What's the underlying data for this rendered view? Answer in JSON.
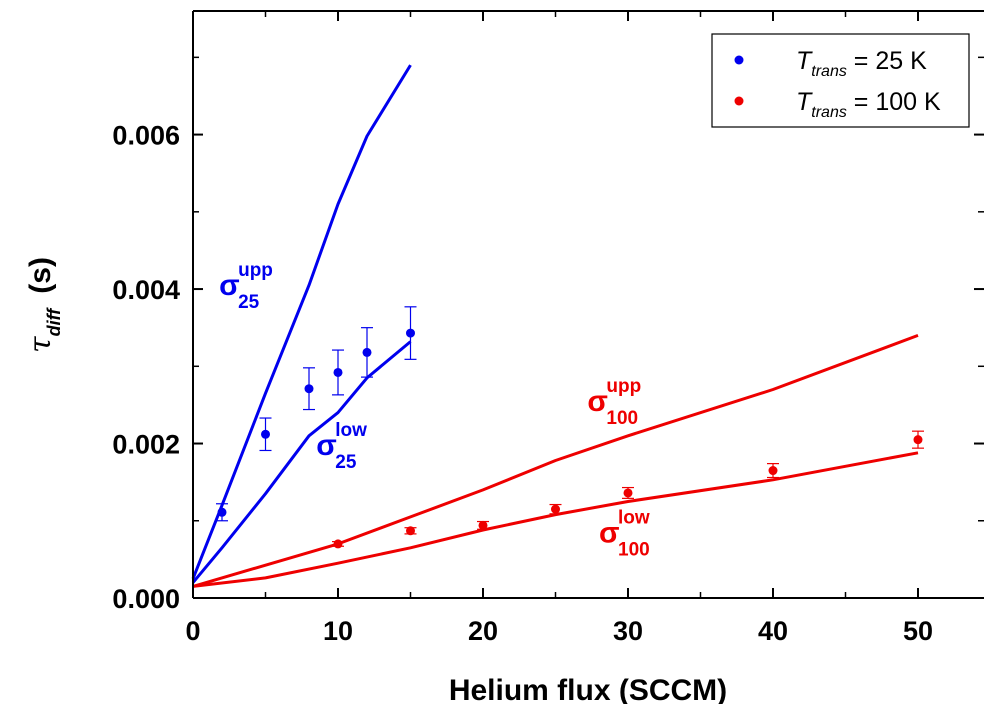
{
  "chart_data": {
    "type": "scatter",
    "xlabel": "Helium flux (SCCM)",
    "ylabel": {
      "symbol": "τ",
      "sub": "diff",
      "unit": "(s)"
    },
    "xlim": [
      0,
      55
    ],
    "ylim": [
      0,
      0.0076
    ],
    "x_ticks": [
      0,
      10,
      20,
      30,
      40,
      50
    ],
    "x_tick_labels": [
      "0",
      "10",
      "20",
      "30",
      "40",
      "50"
    ],
    "y_ticks": [
      0.0,
      0.002,
      0.004,
      0.006
    ],
    "y_tick_labels": [
      "0.000",
      "0.002",
      "0.004",
      "0.006"
    ],
    "grid": false,
    "legend": {
      "position": "top-right",
      "entries": [
        {
          "symbol": "T",
          "sub": "trans",
          "text": " = 25 K",
          "color": "#0000ee"
        },
        {
          "symbol": "T",
          "sub": "trans",
          "text": " = 100 K",
          "color": "#ee0000"
        }
      ]
    },
    "series": [
      {
        "color": "#0000ee",
        "kind": "points",
        "x": [
          2,
          5,
          8,
          10,
          12,
          15
        ],
        "y": [
          0.00111,
          0.00212,
          0.00271,
          0.00292,
          0.00318,
          0.00343
        ],
        "err": [
          0.00011,
          0.00021,
          0.00027,
          0.00029,
          0.00032,
          0.00034
        ]
      },
      {
        "color": "#ee0000",
        "kind": "points",
        "x": [
          10,
          15,
          20,
          25,
          30,
          40,
          50
        ],
        "y": [
          0.0007,
          0.00087,
          0.00094,
          0.00115,
          0.00136,
          0.00165,
          0.00205
        ],
        "err": [
          3e-05,
          4e-05,
          5e-05,
          6e-05,
          7e-05,
          9e-05,
          0.00011
        ]
      },
      {
        "color": "#0000ee",
        "kind": "line",
        "x": [
          0,
          2,
          5,
          8,
          10,
          12,
          15
        ],
        "y": [
          0.00025,
          0.0012,
          0.00265,
          0.00405,
          0.0051,
          0.00598,
          0.0069
        ]
      },
      {
        "color": "#0000ee",
        "kind": "line",
        "x": [
          0,
          2,
          5,
          8,
          10,
          12,
          15
        ],
        "y": [
          0.0002,
          0.00065,
          0.00135,
          0.0021,
          0.0024,
          0.00285,
          0.00332
        ]
      },
      {
        "color": "#ee0000",
        "kind": "line",
        "x": [
          0,
          10,
          15,
          20,
          25,
          30,
          40,
          50
        ],
        "y": [
          0.00015,
          0.0007,
          0.00105,
          0.0014,
          0.00178,
          0.0021,
          0.0027,
          0.0034
        ]
      },
      {
        "color": "#ee0000",
        "kind": "line",
        "x": [
          0,
          5,
          10,
          15,
          20,
          25,
          30,
          40,
          50
        ],
        "y": [
          0.00015,
          0.00026,
          0.00045,
          0.00065,
          0.00088,
          0.00108,
          0.00125,
          0.00153,
          0.00188
        ]
      }
    ],
    "annotations": [
      {
        "symbol": "σ",
        "sup": "upp",
        "sub": "25",
        "color": "#0000ee",
        "x": 1.8,
        "y": 0.00392
      },
      {
        "symbol": "σ",
        "sup": "low",
        "sub": "25",
        "color": "#0000ee",
        "x": 8.5,
        "y": 0.00185
      },
      {
        "symbol": "σ",
        "sup": "upp",
        "sub": "100",
        "color": "#ee0000",
        "x": 27.2,
        "y": 0.00242
      },
      {
        "symbol": "σ",
        "sup": "low",
        "sub": "100",
        "color": "#ee0000",
        "x": 28.0,
        "y": 0.00072
      }
    ]
  }
}
